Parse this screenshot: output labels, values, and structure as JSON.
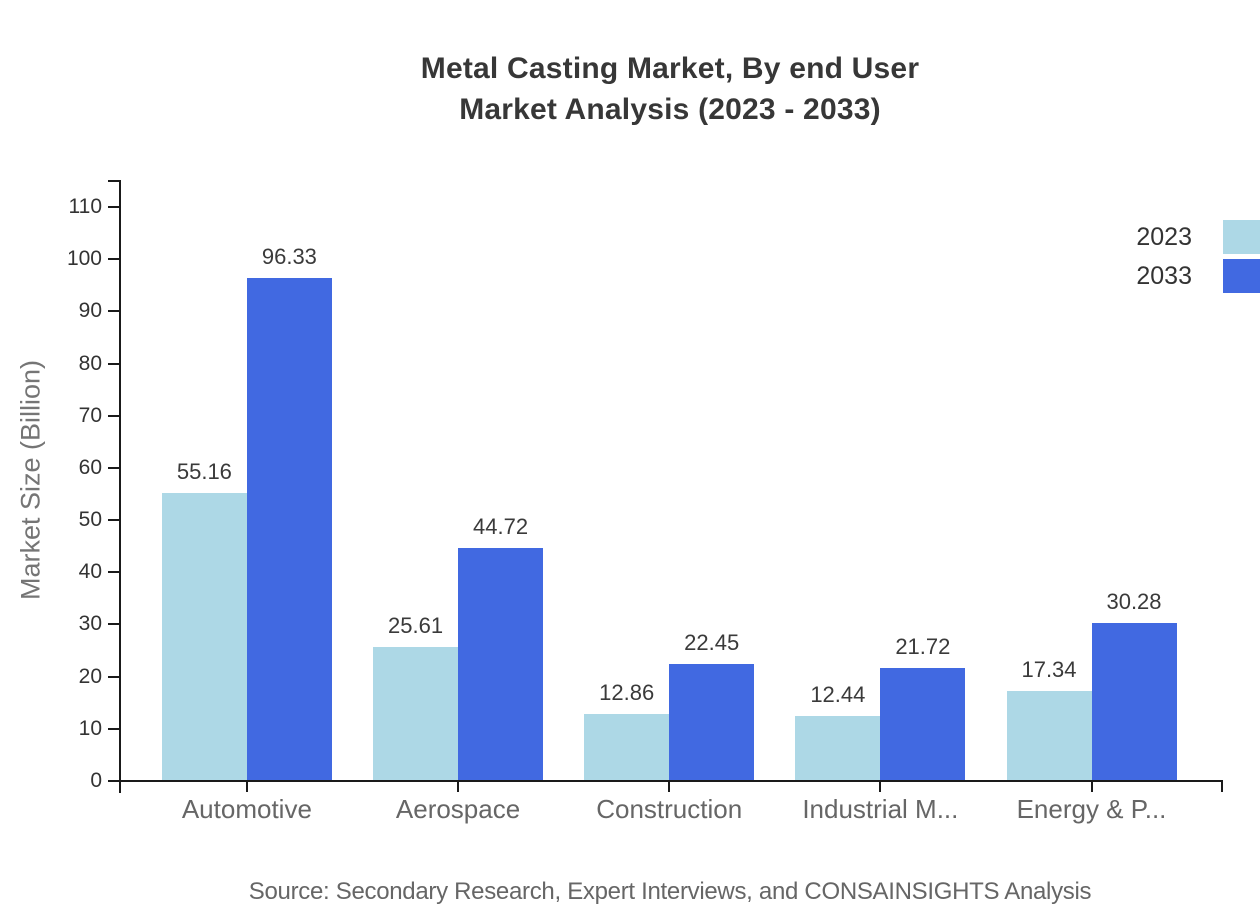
{
  "title": {
    "line1": "Metal Casting Market, By end User",
    "line2": "Market Analysis (2023 - 2033)"
  },
  "source": "Source: Secondary Research, Expert Interviews, and CONSAINSIGHTS Analysis",
  "legend": [
    {
      "label": "2023",
      "color": "#add8e6"
    },
    {
      "label": "2033",
      "color": "#4169e1"
    }
  ],
  "colors": {
    "series_2023": "#add8e6",
    "series_2033": "#4169e1",
    "axis": "#1a1a1a",
    "tick_label": "#333333",
    "category_label": "#666666",
    "axis_title": "#757575",
    "value_label": "#3a3a3a",
    "title": "#373737",
    "source": "#666666"
  },
  "chart_data": {
    "type": "bar",
    "title": "Metal Casting Market, By end User Market Analysis (2023 - 2033)",
    "categories": [
      "Automotive",
      "Aerospace",
      "Construction",
      "Industrial M...",
      "Energy & P..."
    ],
    "series": [
      {
        "name": "2023",
        "color": "#add8e6",
        "values": [
          55.16,
          25.61,
          12.86,
          12.44,
          17.34
        ]
      },
      {
        "name": "2033",
        "color": "#4169e1",
        "values": [
          96.33,
          44.72,
          22.45,
          21.72,
          30.28
        ]
      }
    ],
    "xlabel": "",
    "ylabel": "Market Size (Billion)",
    "ylim": [
      0,
      110
    ],
    "ytick_step": 10,
    "grid": false,
    "legend_position": "top-right",
    "value_labels": true,
    "value_label_format": "2dp"
  }
}
